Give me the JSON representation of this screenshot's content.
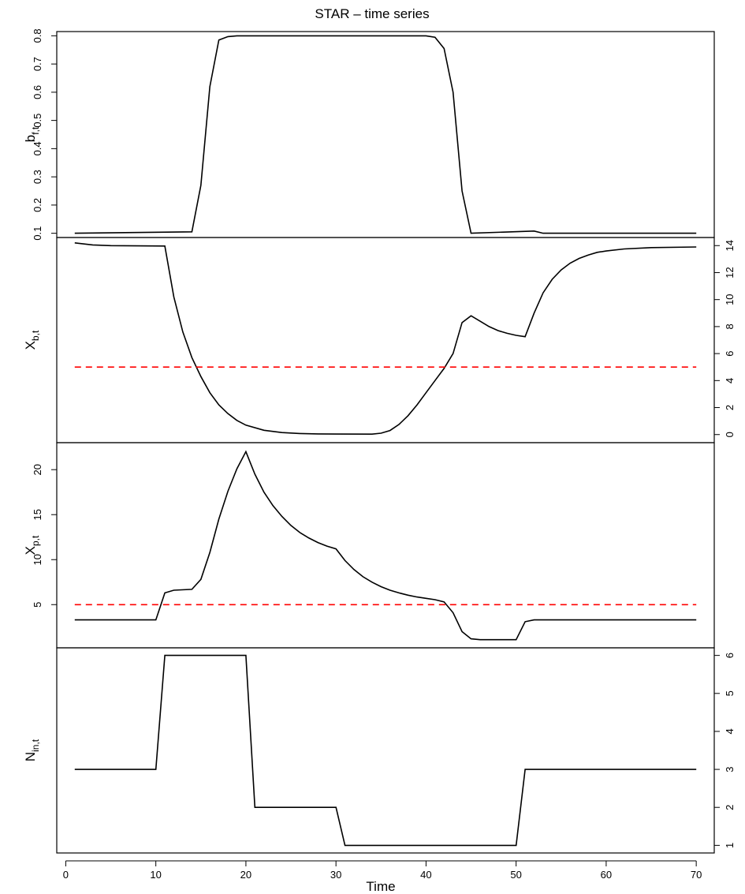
{
  "chart_data": {
    "type": "line",
    "title": "STAR – time series",
    "xlabel": "Time",
    "x_ticks": [
      0,
      10,
      20,
      30,
      40,
      50,
      60,
      70
    ],
    "xlim": [
      -1,
      72
    ],
    "panels": [
      {
        "id": "bf",
        "ylabel_main": "b",
        "ylabel_sub": "f,t",
        "axis_side": "left",
        "ylim": [
          0.085,
          0.815
        ],
        "ticks": [
          0.1,
          0.2,
          0.3,
          0.4,
          0.5,
          0.6,
          0.7,
          0.8
        ],
        "tick_labels": [
          "0.1",
          "0.2",
          "0.3",
          "0.4",
          "0.5",
          "0.6",
          "0.7",
          "0.8"
        ],
        "series": [
          {
            "x": [
              1,
              14,
              15,
              16,
              17,
              18,
              19,
              20,
              30,
              40,
              41,
              42,
              43,
              44,
              45,
              52,
              53,
              70
            ],
            "y": [
              0.1,
              0.105,
              0.27,
              0.62,
              0.785,
              0.797,
              0.8,
              0.8,
              0.8,
              0.8,
              0.795,
              0.755,
              0.6,
              0.25,
              0.1,
              0.108,
              0.1,
              0.1
            ],
            "color": "#000000",
            "style": "solid"
          }
        ]
      },
      {
        "id": "xb",
        "ylabel_main": "X",
        "ylabel_sub": "b,t",
        "axis_side": "right",
        "ylim": [
          -0.6,
          14.6
        ],
        "ticks": [
          0,
          2,
          4,
          6,
          8,
          10,
          12,
          14
        ],
        "tick_labels": [
          "0",
          "2",
          "4",
          "6",
          "8",
          "10",
          "12",
          "14"
        ],
        "series": [
          {
            "x": [
              1,
              3,
              5,
              8,
              11,
              12,
              13,
              14,
              15,
              16,
              17,
              18,
              19,
              20,
              22,
              24,
              26,
              28,
              30,
              34,
              35,
              36,
              37,
              38,
              39,
              40,
              41,
              42,
              43,
              44,
              45,
              46,
              47,
              48,
              49,
              50,
              51,
              52,
              53,
              54,
              55,
              56,
              57,
              58,
              59,
              60,
              62,
              65,
              70
            ],
            "y": [
              14.2,
              14.05,
              14.0,
              13.98,
              13.97,
              10.2,
              7.6,
              5.7,
              4.3,
              3.1,
              2.2,
              1.55,
              1.05,
              0.7,
              0.32,
              0.15,
              0.08,
              0.05,
              0.04,
              0.03,
              0.1,
              0.3,
              0.75,
              1.4,
              2.2,
              3.1,
              4.0,
              4.9,
              6.0,
              8.3,
              8.8,
              8.4,
              8.0,
              7.7,
              7.5,
              7.35,
              7.25,
              9.0,
              10.5,
              11.5,
              12.2,
              12.7,
              13.05,
              13.3,
              13.5,
              13.6,
              13.75,
              13.85,
              13.9
            ],
            "color": "#000000",
            "style": "solid"
          },
          {
            "x": [
              1,
              70
            ],
            "y": [
              5,
              5
            ],
            "color": "#ff0000",
            "style": "dashed"
          }
        ]
      },
      {
        "id": "xp",
        "ylabel_main": "X",
        "ylabel_sub": "p,t",
        "axis_side": "left",
        "ylim": [
          0.2,
          23.0
        ],
        "ticks": [
          5,
          10,
          15,
          20
        ],
        "tick_labels": [
          "5",
          "10",
          "15",
          "20"
        ],
        "series": [
          {
            "x": [
              1,
              10,
              11,
              12,
              14,
              15,
              16,
              17,
              18,
              19,
              20,
              21,
              22,
              23,
              24,
              25,
              26,
              27,
              28,
              29,
              30,
              31,
              32,
              33,
              34,
              35,
              36,
              37,
              38,
              39,
              40,
              41,
              42,
              43,
              44,
              45,
              46,
              50,
              51,
              52,
              70
            ],
            "y": [
              3.3,
              3.3,
              6.3,
              6.6,
              6.7,
              7.8,
              10.8,
              14.5,
              17.6,
              20.1,
              22.0,
              19.5,
              17.5,
              16.0,
              14.8,
              13.8,
              13.0,
              12.4,
              11.9,
              11.5,
              11.2,
              9.9,
              8.9,
              8.1,
              7.5,
              7.0,
              6.6,
              6.3,
              6.05,
              5.85,
              5.7,
              5.55,
              5.3,
              4.1,
              2.0,
              1.2,
              1.1,
              1.1,
              3.1,
              3.3,
              3.3
            ],
            "color": "#000000",
            "style": "solid"
          },
          {
            "x": [
              1,
              70
            ],
            "y": [
              5,
              5
            ],
            "color": "#ff0000",
            "style": "dashed"
          }
        ]
      },
      {
        "id": "nin",
        "ylabel_main": "N",
        "ylabel_sub": "in,t",
        "axis_side": "right",
        "ylim": [
          0.8,
          6.2
        ],
        "ticks": [
          1,
          2,
          3,
          4,
          5,
          6
        ],
        "tick_labels": [
          "1",
          "2",
          "3",
          "4",
          "5",
          "6"
        ],
        "series": [
          {
            "x": [
              1,
              10,
              11,
              20,
              21,
              30,
              31,
              50,
              51,
              70
            ],
            "y": [
              3,
              3,
              6,
              6,
              2,
              2,
              1,
              1,
              3,
              3
            ],
            "color": "#000000",
            "style": "solid"
          }
        ]
      }
    ]
  }
}
